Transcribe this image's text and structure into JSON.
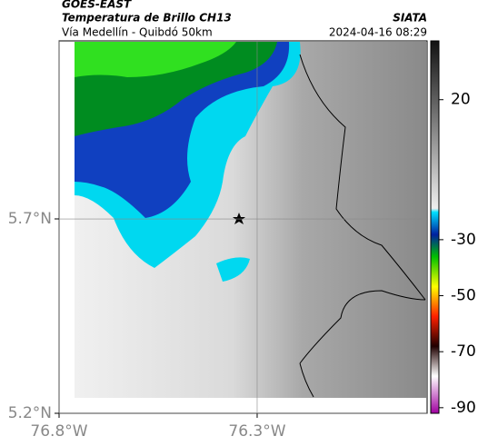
{
  "header": {
    "satellite": "GOES-EAST",
    "product": "Temperatura de Brillo CH13",
    "source": "SIATA",
    "region": "Vía Medellín - Quibdó 50km",
    "datetime": "2024-04-16 08:29"
  },
  "map": {
    "xlim": [
      -76.8,
      -75.871
    ],
    "ylim": [
      5.2,
      6.158
    ],
    "xticks": [
      {
        "value": -76.8,
        "label": "76.8°W"
      },
      {
        "value": -76.3,
        "label": "76.3°W"
      }
    ],
    "yticks": [
      {
        "value": 5.2,
        "label": "5.2°N"
      },
      {
        "value": 5.7,
        "label": "5.7°N"
      }
    ],
    "grid": true
  },
  "colorbar": {
    "lim": [
      -92,
      41
    ],
    "ticks": [
      20,
      -30,
      -50,
      -70,
      -90
    ]
  }
}
